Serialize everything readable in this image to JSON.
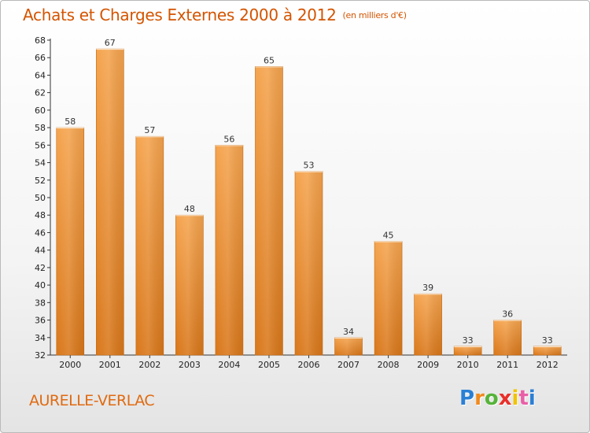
{
  "chart_data": {
    "type": "bar",
    "title": "Achats et Charges Externes 2000 à 2012",
    "subtitle": "(en milliers d'€)",
    "categories": [
      "2000",
      "2001",
      "2002",
      "2003",
      "2004",
      "2005",
      "2006",
      "2007",
      "2008",
      "2009",
      "2010",
      "2011",
      "2012"
    ],
    "values": [
      58,
      67,
      57,
      48,
      56,
      65,
      53,
      34,
      45,
      39,
      33,
      36,
      33
    ],
    "ylim": [
      32,
      68
    ],
    "yticks": [
      32,
      34,
      36,
      38,
      40,
      42,
      44,
      46,
      48,
      50,
      52,
      54,
      56,
      58,
      60,
      62,
      64,
      66,
      68
    ],
    "grid": false,
    "bar_color_light": "#f5a44e",
    "bar_color_dark": "#d9771a"
  },
  "footer": {
    "commune": "AURELLE-VERLAC",
    "logo_letters": [
      "P",
      "r",
      "o",
      "x",
      "i",
      "t",
      "i"
    ],
    "logo_colors": [
      "#2a7fd4",
      "#f08a1c",
      "#56b33a",
      "#e8302a",
      "#f2c200",
      "#e85fa8",
      "#2a7fd4"
    ]
  }
}
